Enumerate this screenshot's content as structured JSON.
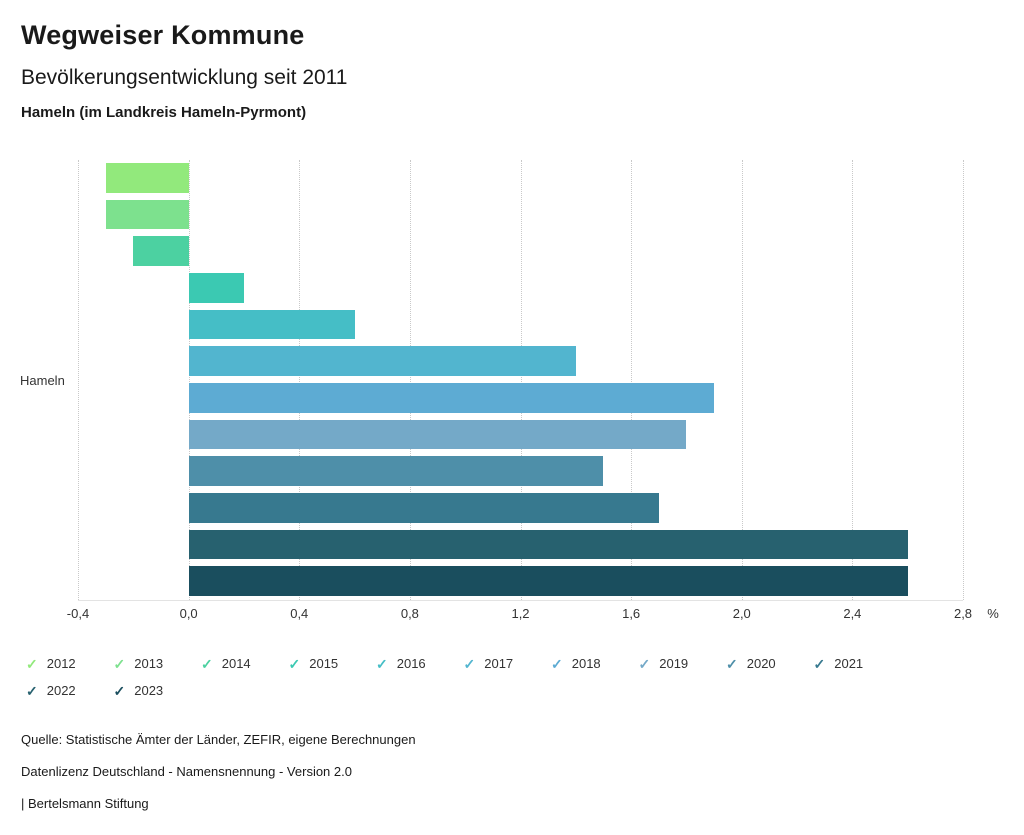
{
  "header": {
    "title": "Wegweiser Kommune",
    "subtitle": "Bevölkerungsentwicklung seit 2011",
    "region": "Hameln (im Landkreis Hameln-Pyrmont)"
  },
  "chart_data": {
    "type": "bar",
    "orientation": "horizontal",
    "title": "Bevölkerungsentwicklung seit 2011",
    "group_label": "Hameln",
    "categories": [
      "2012",
      "2013",
      "2014",
      "2015",
      "2016",
      "2017",
      "2018",
      "2019",
      "2020",
      "2021",
      "2022",
      "2023"
    ],
    "values": [
      -0.3,
      -0.3,
      -0.2,
      0.2,
      0.6,
      1.4,
      1.9,
      1.8,
      1.5,
      1.7,
      2.6,
      2.6
    ],
    "colors": [
      "#92e97c",
      "#7de18e",
      "#4cd1a1",
      "#3bc9b2",
      "#45bec6",
      "#52b5cf",
      "#5dabd3",
      "#74a9c8",
      "#4e8fa9",
      "#37798f",
      "#27616f",
      "#1a4e5e"
    ],
    "xlim": [
      -0.4,
      2.8
    ],
    "xticks": [
      -0.4,
      0.0,
      0.4,
      0.8,
      1.2,
      1.6,
      2.0,
      2.4,
      2.8
    ],
    "xtick_labels": [
      "-0,4",
      "0,0",
      "0,4",
      "0,8",
      "1,2",
      "1,6",
      "2,0",
      "2,4",
      "2,8"
    ],
    "x_unit": "%",
    "xlabel": "",
    "ylabel": "Hameln",
    "grid": "dotted-vertical",
    "legend_position": "bottom"
  },
  "legend": {
    "check_glyph": "✓"
  },
  "footer": {
    "source": "Quelle: Statistische Ämter der Länder, ZEFIR, eigene Berechnungen",
    "license": "Datenlizenz Deutschland - Namensnennung - Version 2.0",
    "attribution": "| Bertelsmann Stiftung"
  }
}
